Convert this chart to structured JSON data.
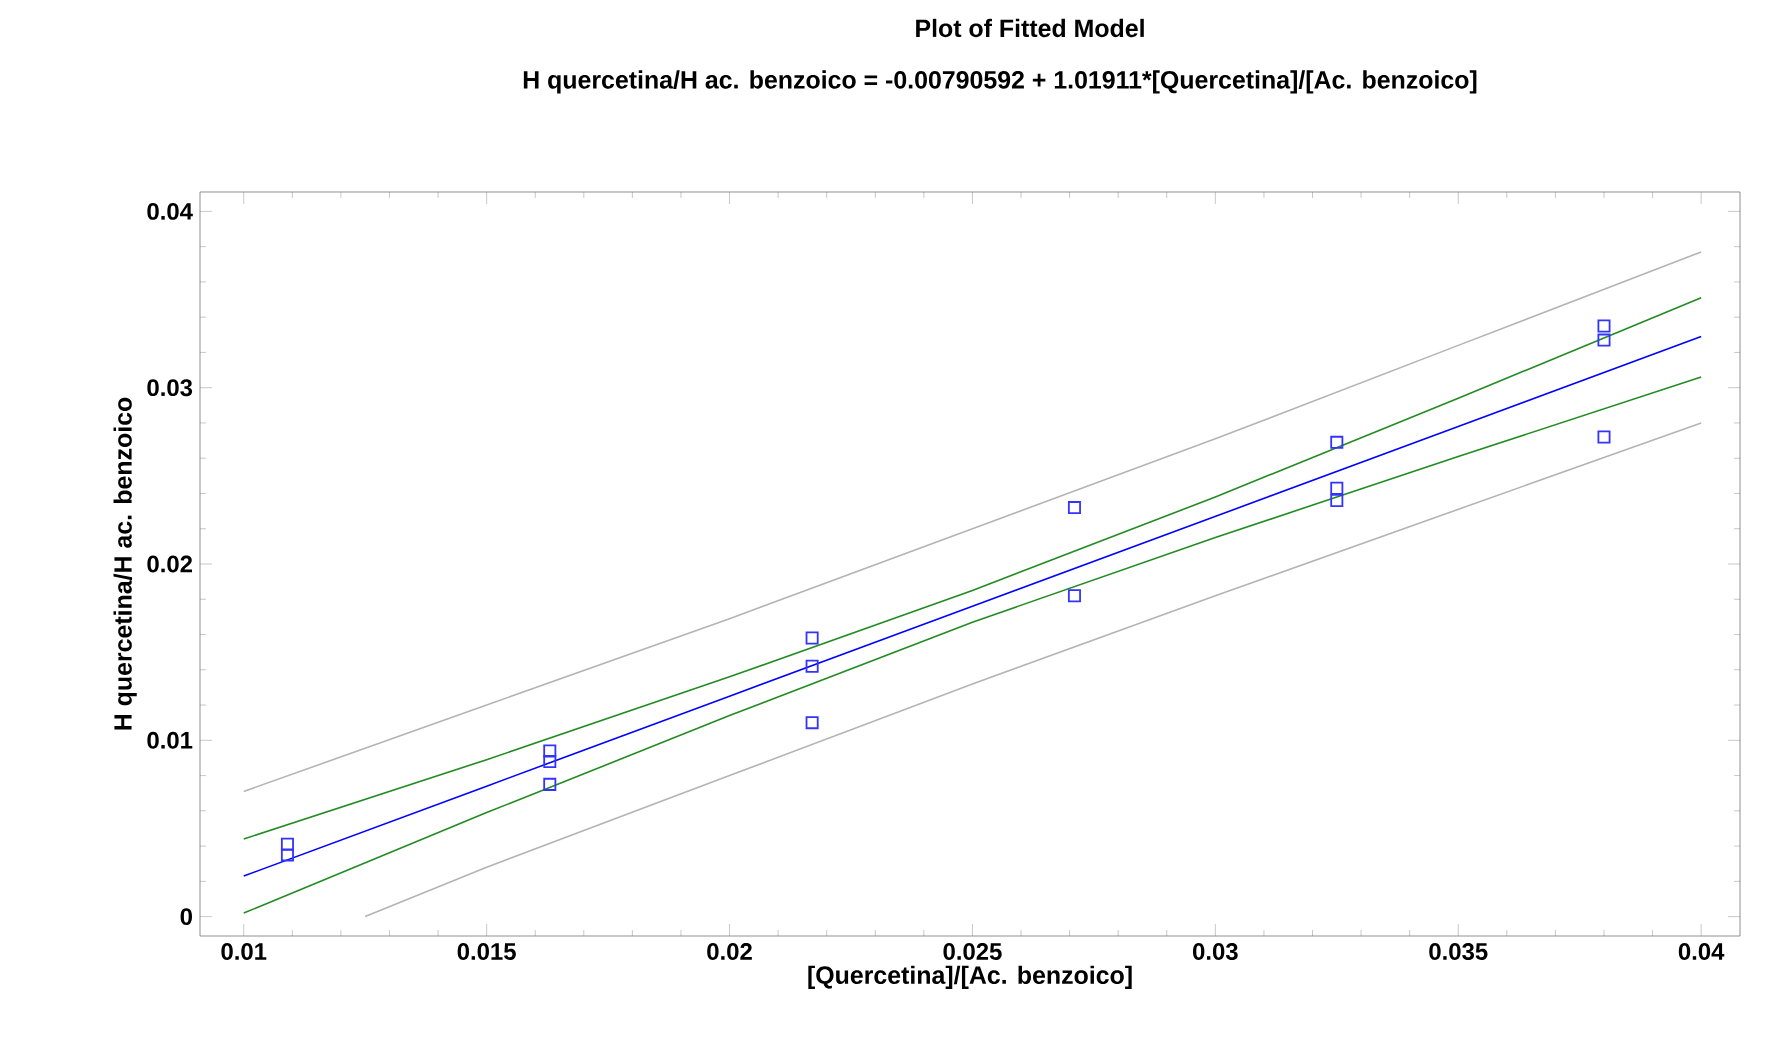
{
  "chart_data": {
    "type": "scatter",
    "title": "Plot of Fitted Model",
    "subtitle": "H quercetina/H ac. benzoico = -0.00790592 + 1.01911*[Quercetina]/[Ac. benzoico]",
    "xlabel": "[Quercetina]/[Ac. benzoico]",
    "ylabel": "H quercetina/H ac. benzoico",
    "xlim": [
      0.0091,
      0.0408
    ],
    "ylim": [
      -0.0011,
      0.0411
    ],
    "xticks": [
      0.01,
      0.015,
      0.02,
      0.025,
      0.03,
      0.035,
      0.04
    ],
    "yticks": [
      0,
      0.01,
      0.02,
      0.03,
      0.04
    ],
    "grid": false,
    "series": [
      {
        "type": "line",
        "color": "#b4b4b4",
        "x": [
          0.01,
          0.015,
          0.02,
          0.025,
          0.03,
          0.035,
          0.04
        ],
        "values": [
          0.0071,
          0.012,
          0.0169,
          0.022,
          0.0271,
          0.0324,
          0.0377
        ]
      },
      {
        "type": "line",
        "color": "#b4b4b4",
        "x": [
          0.0125,
          0.015,
          0.02,
          0.025,
          0.03,
          0.035,
          0.04
        ],
        "values": [
          0.0,
          0.0028,
          0.008,
          0.0132,
          0.0182,
          0.0231,
          0.028
        ]
      },
      {
        "type": "line",
        "color": "#228b22",
        "x": [
          0.01,
          0.015,
          0.02,
          0.025,
          0.03,
          0.035,
          0.04
        ],
        "values": [
          0.0044,
          0.0089,
          0.0136,
          0.0185,
          0.0238,
          0.0294,
          0.0351
        ]
      },
      {
        "type": "line",
        "color": "#228b22",
        "x": [
          0.01,
          0.015,
          0.02,
          0.025,
          0.03,
          0.035,
          0.04
        ],
        "values": [
          0.0002,
          0.0059,
          0.0114,
          0.0167,
          0.0215,
          0.0261,
          0.0306
        ]
      },
      {
        "type": "line",
        "color": "#0000ff",
        "x": [
          0.01,
          0.015,
          0.02,
          0.025,
          0.03,
          0.035,
          0.04
        ],
        "values": [
          0.0023,
          0.0074,
          0.0125,
          0.0176,
          0.0227,
          0.0278,
          0.0329
        ]
      },
      {
        "marker": "square",
        "color": "#3333ff",
        "x": [
          0.0109,
          0.0109,
          0.0163,
          0.0163,
          0.0163,
          0.0217,
          0.0217,
          0.0217,
          0.0271,
          0.0271,
          0.0325,
          0.0325,
          0.0325,
          0.038,
          0.038,
          0.038
        ],
        "values": [
          0.0041,
          0.0035,
          0.0094,
          0.0088,
          0.0075,
          0.0158,
          0.0142,
          0.011,
          0.0232,
          0.0182,
          0.0269,
          0.0243,
          0.0236,
          0.0335,
          0.0327,
          0.0272
        ]
      }
    ]
  }
}
